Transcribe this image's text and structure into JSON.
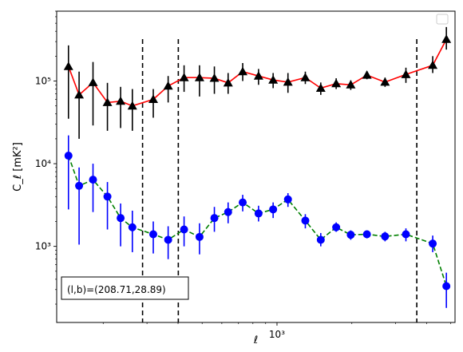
{
  "chart_data": {
    "type": "scatter",
    "x_scale": "log",
    "y_scale": "log",
    "xlim": [
      130,
      5200
    ],
    "ylim": [
      120,
      700000
    ],
    "xlabel": "ℓ",
    "ylabel": "C_ℓ [mK²]",
    "x_ticks": [
      {
        "value": 1000,
        "label": "10³"
      }
    ],
    "y_ticks": [
      {
        "value": 1000,
        "label": "10³"
      },
      {
        "value": 10000,
        "label": "10⁴"
      },
      {
        "value": 100000,
        "label": "10⁵"
      }
    ],
    "vlines": [
      288,
      401,
      3650
    ],
    "annotation": "(l,b)=(208.71,28.89)",
    "legend": "top-right (empty box)",
    "series": [
      {
        "marker": "triangle",
        "marker_color": "#000000",
        "errorbar_color": "#000000",
        "line_color": "#ff0000",
        "line_style": "solid",
        "points": [
          {
            "x": 145,
            "y": 150000,
            "lo": 35000,
            "hi": 270000
          },
          {
            "x": 160,
            "y": 68000,
            "lo": 20000,
            "hi": 130000
          },
          {
            "x": 182,
            "y": 96000,
            "lo": 29000,
            "hi": 170000
          },
          {
            "x": 208,
            "y": 55000,
            "lo": 25000,
            "hi": 95000
          },
          {
            "x": 235,
            "y": 57000,
            "lo": 27000,
            "hi": 85000
          },
          {
            "x": 262,
            "y": 50000,
            "lo": 25000,
            "hi": 80000
          },
          {
            "x": 318,
            "y": 60000,
            "lo": 36000,
            "hi": 80000
          },
          {
            "x": 365,
            "y": 87000,
            "lo": 55000,
            "hi": 115000
          },
          {
            "x": 423,
            "y": 110000,
            "lo": 74000,
            "hi": 155000
          },
          {
            "x": 488,
            "y": 110000,
            "lo": 65000,
            "hi": 155000
          },
          {
            "x": 560,
            "y": 108000,
            "lo": 70000,
            "hi": 150000
          },
          {
            "x": 636,
            "y": 95000,
            "lo": 70000,
            "hi": 125000
          },
          {
            "x": 728,
            "y": 130000,
            "lo": 100000,
            "hi": 165000
          },
          {
            "x": 843,
            "y": 115000,
            "lo": 90000,
            "hi": 140000
          },
          {
            "x": 965,
            "y": 103000,
            "lo": 82000,
            "hi": 125000
          },
          {
            "x": 1107,
            "y": 97000,
            "lo": 72000,
            "hi": 125000
          },
          {
            "x": 1300,
            "y": 110000,
            "lo": 92000,
            "hi": 130000
          },
          {
            "x": 1500,
            "y": 82000,
            "lo": 68000,
            "hi": 96000
          },
          {
            "x": 1730,
            "y": 93000,
            "lo": 80000,
            "hi": 108000
          },
          {
            "x": 1980,
            "y": 90000,
            "lo": 78000,
            "hi": 102000
          },
          {
            "x": 2300,
            "y": 118000,
            "lo": 105000,
            "hi": 132000
          },
          {
            "x": 2720,
            "y": 97000,
            "lo": 85000,
            "hi": 110000
          },
          {
            "x": 3300,
            "y": 120000,
            "lo": 95000,
            "hi": 145000
          },
          {
            "x": 4230,
            "y": 155000,
            "lo": 125000,
            "hi": 200000
          },
          {
            "x": 4800,
            "y": 320000,
            "lo": 240000,
            "hi": 450000
          }
        ]
      },
      {
        "marker": "circle",
        "marker_color": "#0000ff",
        "errorbar_color": "#0000ff",
        "line_color": "#008000",
        "line_style": "dashed",
        "points": [
          {
            "x": 145,
            "y": 12500,
            "lo": 2800,
            "hi": 22000
          },
          {
            "x": 160,
            "y": 5400,
            "lo": 1050,
            "hi": 9000
          },
          {
            "x": 182,
            "y": 6400,
            "lo": 2600,
            "hi": 10000
          },
          {
            "x": 208,
            "y": 4000,
            "lo": 1600,
            "hi": 6000
          },
          {
            "x": 235,
            "y": 2200,
            "lo": 1000,
            "hi": 3300
          },
          {
            "x": 262,
            "y": 1700,
            "lo": 850,
            "hi": 2700
          },
          {
            "x": 318,
            "y": 1400,
            "lo": 820,
            "hi": 2000
          },
          {
            "x": 365,
            "y": 1200,
            "lo": 700,
            "hi": 1750
          },
          {
            "x": 423,
            "y": 1600,
            "lo": 1000,
            "hi": 2300
          },
          {
            "x": 488,
            "y": 1300,
            "lo": 800,
            "hi": 1900
          },
          {
            "x": 560,
            "y": 2200,
            "lo": 1500,
            "hi": 3000
          },
          {
            "x": 636,
            "y": 2600,
            "lo": 1900,
            "hi": 3400
          },
          {
            "x": 728,
            "y": 3400,
            "lo": 2650,
            "hi": 4200
          },
          {
            "x": 843,
            "y": 2500,
            "lo": 2000,
            "hi": 3100
          },
          {
            "x": 965,
            "y": 2800,
            "lo": 2200,
            "hi": 3400
          },
          {
            "x": 1107,
            "y": 3700,
            "lo": 3000,
            "hi": 4400
          },
          {
            "x": 1300,
            "y": 2050,
            "lo": 1650,
            "hi": 2450
          },
          {
            "x": 1500,
            "y": 1200,
            "lo": 1000,
            "hi": 1450
          },
          {
            "x": 1730,
            "y": 1700,
            "lo": 1500,
            "hi": 1950
          },
          {
            "x": 1980,
            "y": 1380,
            "lo": 1200,
            "hi": 1560
          },
          {
            "x": 2300,
            "y": 1400,
            "lo": 1250,
            "hi": 1560
          },
          {
            "x": 2720,
            "y": 1320,
            "lo": 1150,
            "hi": 1500
          },
          {
            "x": 3300,
            "y": 1400,
            "lo": 1150,
            "hi": 1650
          },
          {
            "x": 4230,
            "y": 1080,
            "lo": 850,
            "hi": 1350
          },
          {
            "x": 4800,
            "y": 330,
            "lo": 180,
            "hi": 480
          }
        ]
      }
    ]
  }
}
